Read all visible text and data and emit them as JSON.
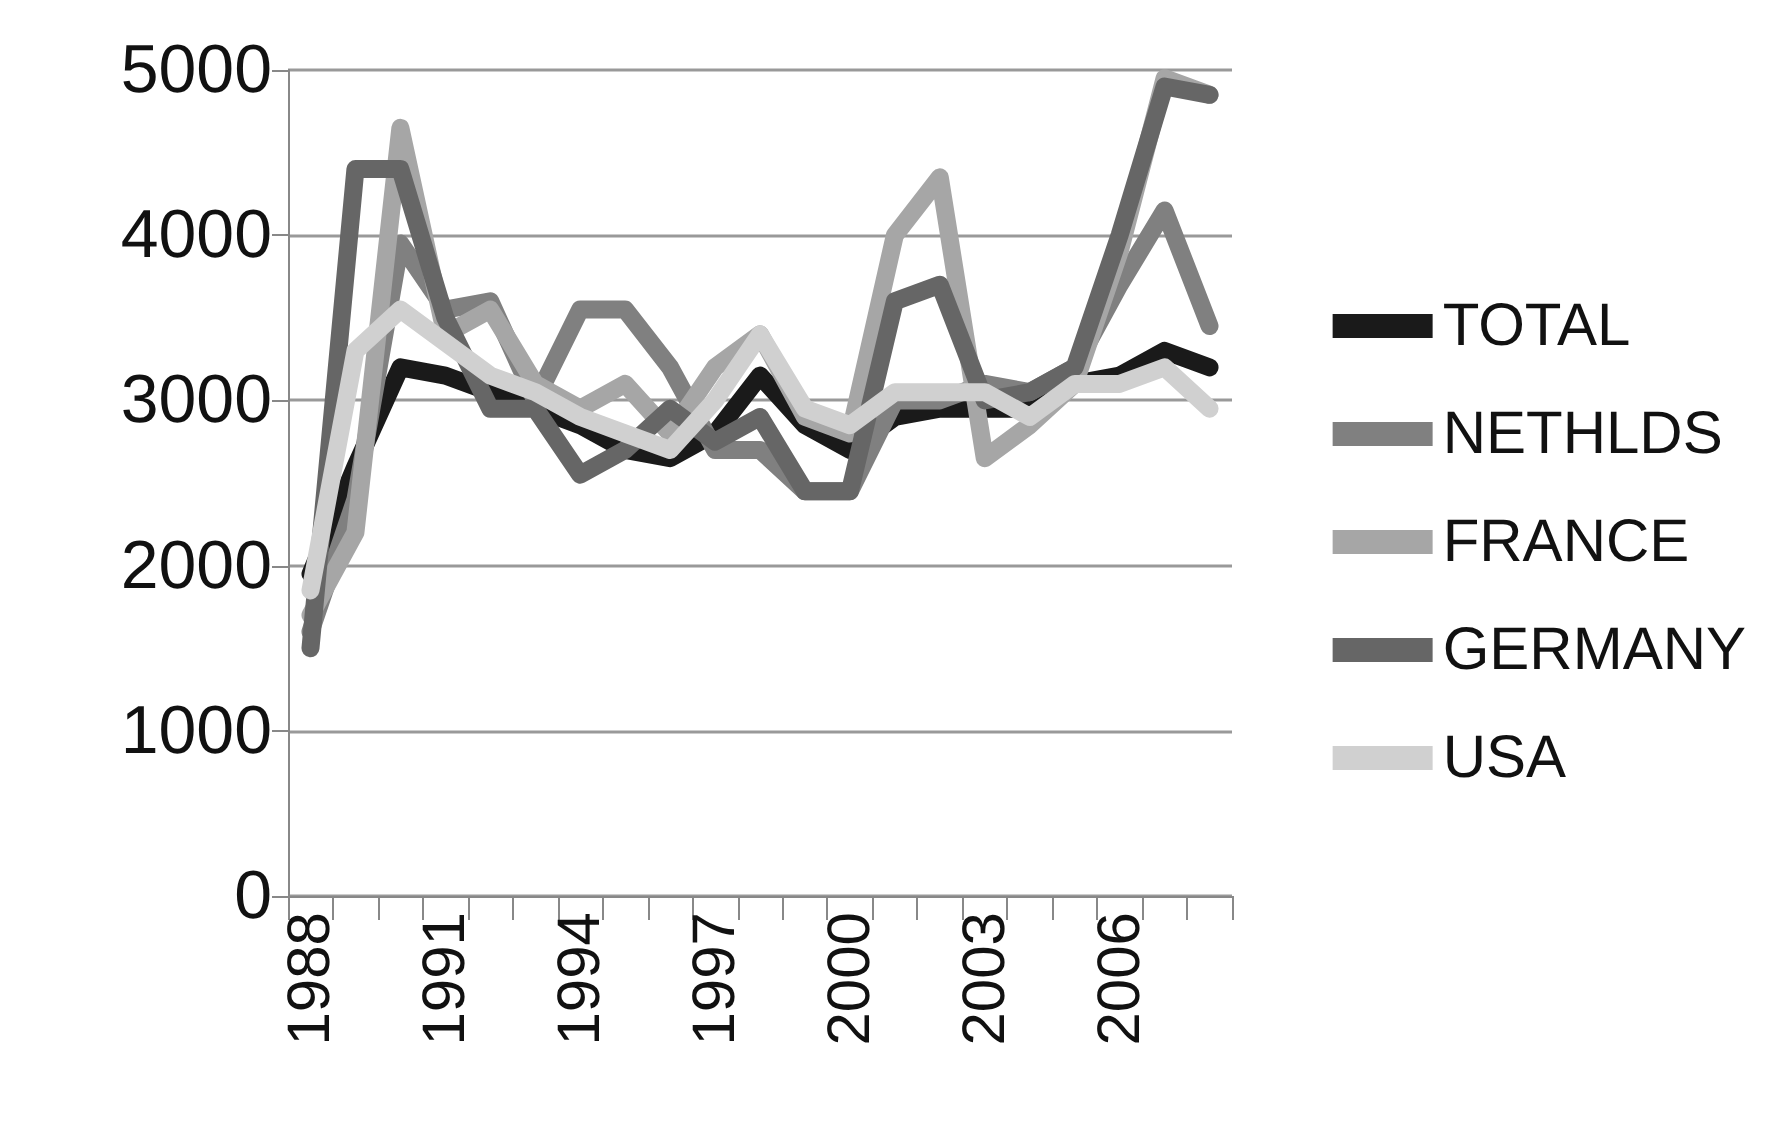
{
  "chart_data": {
    "type": "line",
    "categories": [
      "1988",
      null,
      null,
      "1991",
      null,
      null,
      "1994",
      null,
      null,
      "1997",
      null,
      null,
      "2000",
      null,
      null,
      "2003",
      null,
      null,
      "2006",
      null,
      null
    ],
    "series": [
      {
        "name": "TOTAL",
        "color": "#1a1a1a",
        "values": [
          1950,
          2600,
          3200,
          3150,
          3050,
          2950,
          2850,
          2700,
          2650,
          2800,
          3150,
          2850,
          2700,
          2900,
          2950,
          2950,
          2950,
          3100,
          3150,
          3300,
          3200
        ]
      },
      {
        "name": "NETHLDS",
        "color": "#808080",
        "values": [
          1600,
          2400,
          3950,
          3550,
          3600,
          3000,
          3550,
          3550,
          3200,
          2700,
          2700,
          2450,
          2450,
          3000,
          3000,
          3100,
          3050,
          3200,
          3700,
          4150,
          3450
        ]
      },
      {
        "name": "FRANCE",
        "color": "#a6a6a6",
        "values": [
          1700,
          2200,
          4650,
          3400,
          3550,
          3100,
          2950,
          3100,
          2800,
          3200,
          3400,
          2900,
          2800,
          4000,
          4350,
          2650,
          2850,
          3100,
          3900,
          4950,
          4850
        ]
      },
      {
        "name": "GERMANY",
        "color": "#666666",
        "values": [
          1500,
          4400,
          4400,
          3500,
          2950,
          2950,
          2550,
          2700,
          2950,
          2750,
          2900,
          2450,
          2450,
          3600,
          3700,
          3000,
          3050,
          3200,
          4000,
          4900,
          4850
        ]
      },
      {
        "name": "USA",
        "color": "#d0d0d0",
        "values": [
          1850,
          3300,
          3550,
          3350,
          3150,
          3050,
          2900,
          2800,
          2700,
          3000,
          3400,
          2950,
          2850,
          3050,
          3050,
          3050,
          2900,
          3100,
          3100,
          3200,
          2950
        ]
      }
    ],
    "ylim": [
      0,
      5000
    ],
    "yticks": [
      0,
      1000,
      2000,
      3000,
      4000,
      5000
    ],
    "grid": "y",
    "legend": "right",
    "marker": "none",
    "line_style": "solid"
  }
}
